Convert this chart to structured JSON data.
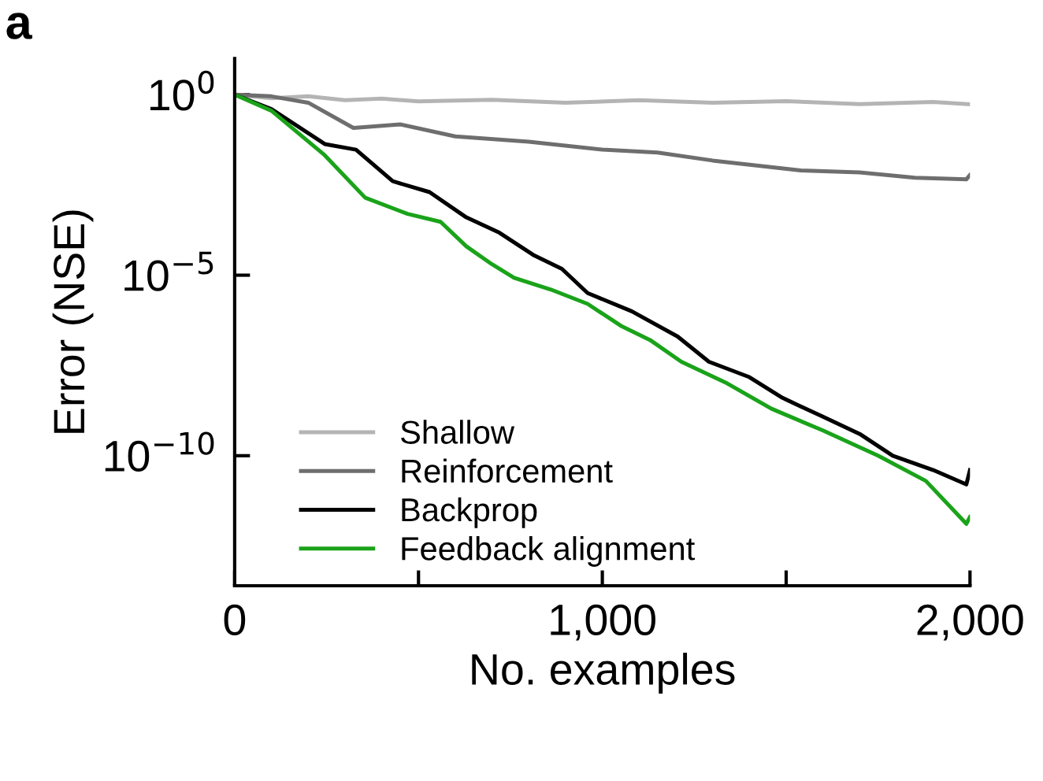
{
  "chart_data": {
    "type": "line",
    "xlabel": "No. examples",
    "ylabel": "Error (NSE)",
    "annotations": [
      "a"
    ],
    "log": "y",
    "grid": false,
    "legend": "bottom left",
    "marker": "none",
    "line_style": "solid",
    "xlim": [
      0,
      2000
    ],
    "xticks": [
      0,
      {
        "value": 500,
        "label": null
      },
      {
        "value": 1000,
        "label": "1,000"
      },
      {
        "value": 1500,
        "label": null
      },
      {
        "value": 2000,
        "label": "2,000"
      }
    ],
    "ylim": [
      2.5e-14,
      10
    ],
    "yticks": [
      {
        "value": 1,
        "label": "10$^{0}$"
      },
      {
        "value": 1e-05,
        "label": "10$^{−5}$"
      },
      {
        "value": 1e-10,
        "label": "10$^{−10}$"
      }
    ],
    "series": [
      {
        "name": "Shallow",
        "color": "#b4b4b4",
        "x": [
          0,
          100,
          200,
          300,
          400,
          500,
          700,
          900,
          1100,
          1300,
          1500,
          1700,
          1900,
          2000
        ],
        "values": [
          1,
          0.8,
          0.9,
          0.7,
          0.78,
          0.65,
          0.72,
          0.6,
          0.7,
          0.6,
          0.66,
          0.55,
          0.63,
          0.54
        ]
      },
      {
        "name": "Reinforcement",
        "color": "#6e6e6e",
        "x": [
          0,
          100,
          200,
          323,
          450,
          600,
          800,
          1000,
          1150,
          1300,
          1540,
          1700,
          1850,
          1990,
          2000
        ],
        "values": [
          1,
          0.9,
          0.6,
          0.12,
          0.15,
          0.07,
          0.05,
          0.03,
          0.025,
          0.015,
          0.008,
          0.007,
          0.005,
          0.0045,
          0.006
        ]
      },
      {
        "name": "Backprop",
        "color": "#000000",
        "x": [
          0,
          100,
          245,
          330,
          430,
          530,
          630,
          720,
          815,
          890,
          960,
          1080,
          1205,
          1290,
          1400,
          1490,
          1600,
          1700,
          1790,
          1900,
          1990,
          2000
        ],
        "values": [
          1,
          0.4,
          0.043,
          0.03,
          0.004,
          0.002,
          0.0004,
          0.00015,
          3.5e-05,
          1.5e-05,
          3.2e-06,
          1e-06,
          2e-07,
          4e-08,
          1.5e-08,
          4e-09,
          1.2e-09,
          4e-10,
          1e-10,
          4e-11,
          1.6e-11,
          4e-11
        ]
      },
      {
        "name": "Feedback alignment",
        "color": "#1aa31a",
        "x": [
          0,
          100,
          245,
          355,
          470,
          560,
          630,
          700,
          760,
          860,
          960,
          1050,
          1130,
          1215,
          1340,
          1460,
          1600,
          1750,
          1880,
          1990,
          2000
        ],
        "values": [
          1,
          0.36,
          0.021,
          0.0014,
          0.0005,
          0.0003,
          6.3e-05,
          2e-05,
          8.5e-06,
          4e-06,
          1.6e-06,
          4e-07,
          1.6e-07,
          4e-08,
          1e-08,
          2e-09,
          5e-10,
          1e-10,
          2e-11,
          1.3e-12,
          2e-12
        ]
      }
    ]
  }
}
